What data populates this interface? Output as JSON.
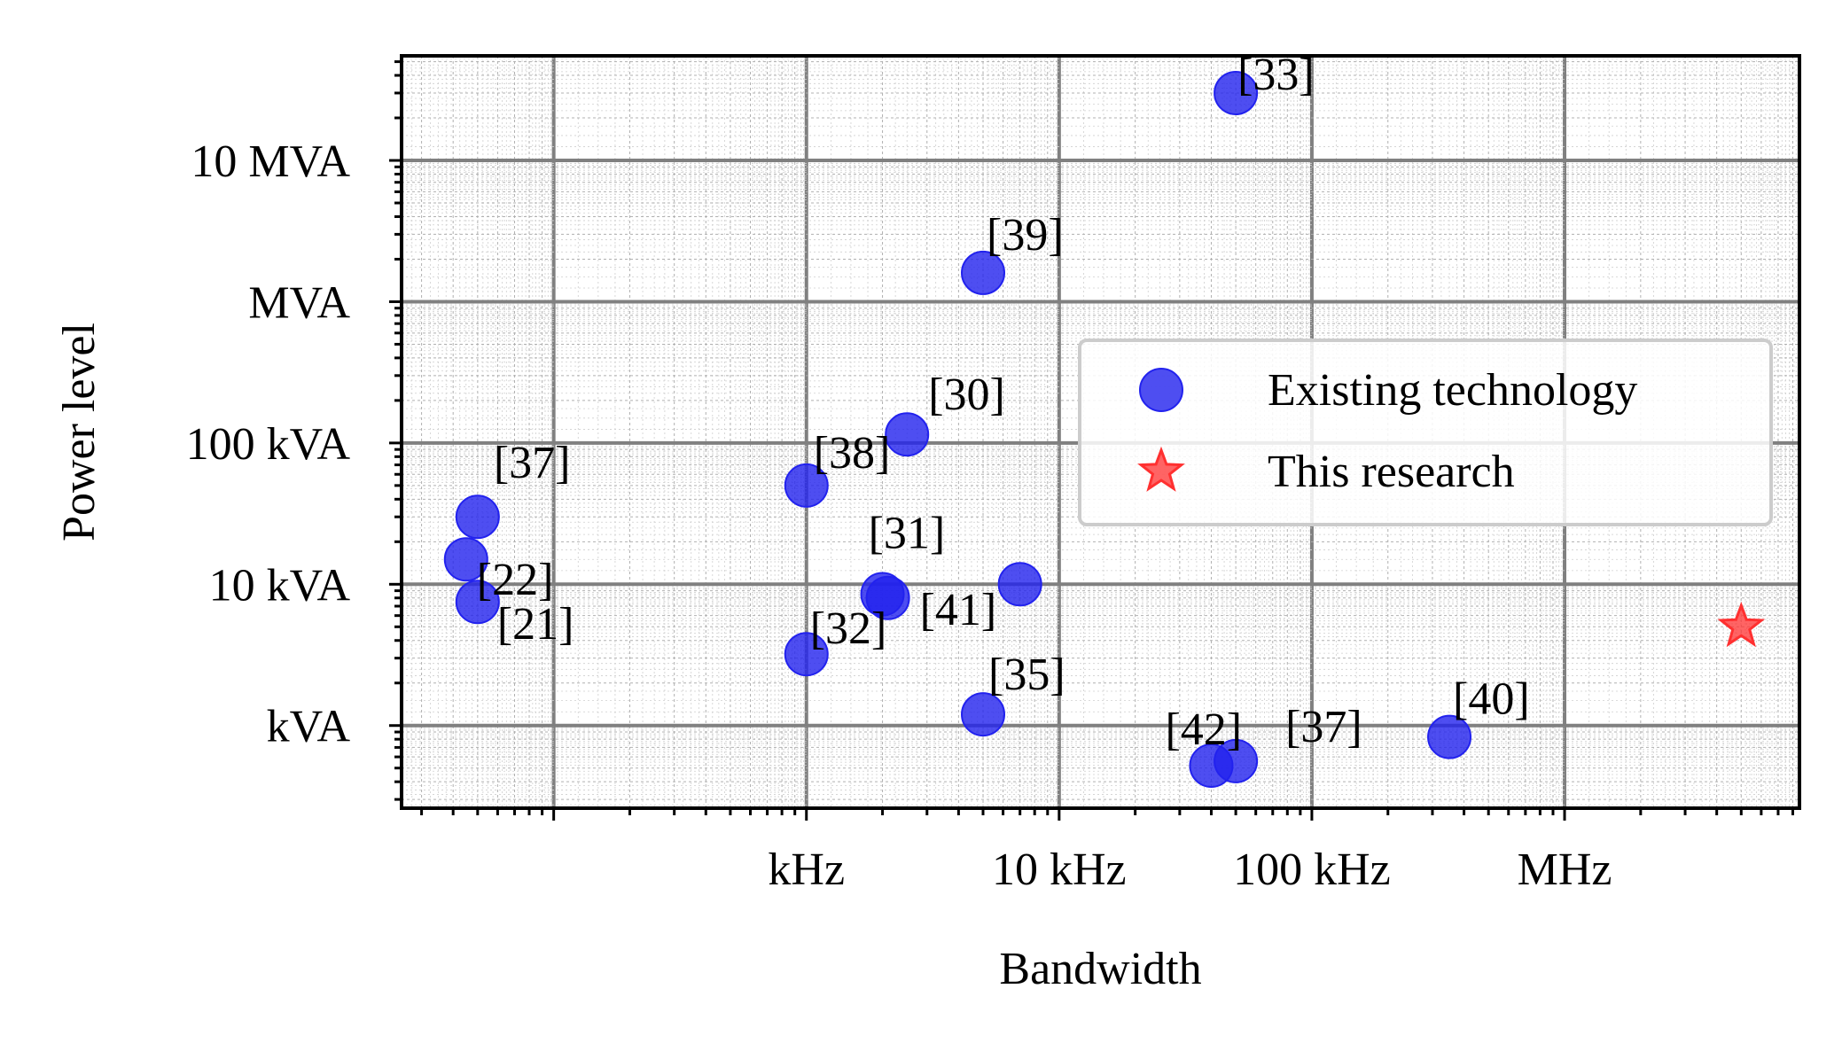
{
  "chart_data": {
    "type": "scatter",
    "x_scale": "log",
    "y_scale": "log",
    "xlabel": "Bandwidth",
    "ylabel": "Power level",
    "xlim_hz": [
      25,
      8500000
    ],
    "ylim_va": [
      260,
      55000000
    ],
    "x_ticks": [
      {
        "value": 1000,
        "label": "kHz"
      },
      {
        "value": 10000,
        "label": "10 kHz"
      },
      {
        "value": 100000,
        "label": "100 kHz"
      },
      {
        "value": 1000000,
        "label": "MHz"
      }
    ],
    "y_ticks": [
      {
        "value": 1000,
        "label": "kVA"
      },
      {
        "value": 10000,
        "label": "10 kVA"
      },
      {
        "value": 100000,
        "label": "100 kVA"
      },
      {
        "value": 1000000,
        "label": "MVA"
      },
      {
        "value": 10000000,
        "label": "10 MVA"
      }
    ],
    "grid": true,
    "legend_position": "right",
    "colors": {
      "existing": "#2222ee",
      "research": "#ff3030",
      "grid_major": "#808080",
      "grid_minor": "#b0b0b0"
    },
    "series": [
      {
        "name": "Existing technology",
        "marker": "circle",
        "points": [
          {
            "label": "[33]",
            "x": 50000,
            "y": 30000000
          },
          {
            "label": "[39]",
            "x": 5000,
            "y": 1600000
          },
          {
            "label": "[30]",
            "x": 2500,
            "y": 115000
          },
          {
            "label": "[37]",
            "x": 50,
            "y": 30000
          },
          {
            "label": "[38]",
            "x": 1000,
            "y": 50000
          },
          {
            "label": "[22]",
            "x": 45,
            "y": 15000
          },
          {
            "label": "[21]",
            "x": 50,
            "y": 7500
          },
          {
            "label": "[31]",
            "x": 2000,
            "y": 8500
          },
          {
            "label": "[41]",
            "x": 2100,
            "y": 8000
          },
          {
            "label": "",
            "x": 7000,
            "y": 10000
          },
          {
            "label": "[32]",
            "x": 1000,
            "y": 3200
          },
          {
            "label": "[35]",
            "x": 5000,
            "y": 1200
          },
          {
            "label": "[42]",
            "x": 40000,
            "y": 520
          },
          {
            "label": "[37]",
            "x": 50000,
            "y": 560
          },
          {
            "label": "[40]",
            "x": 350000,
            "y": 830
          }
        ]
      },
      {
        "name": "This research",
        "marker": "star",
        "points": [
          {
            "label": "",
            "x": 5000000,
            "y": 5000
          }
        ]
      }
    ]
  }
}
